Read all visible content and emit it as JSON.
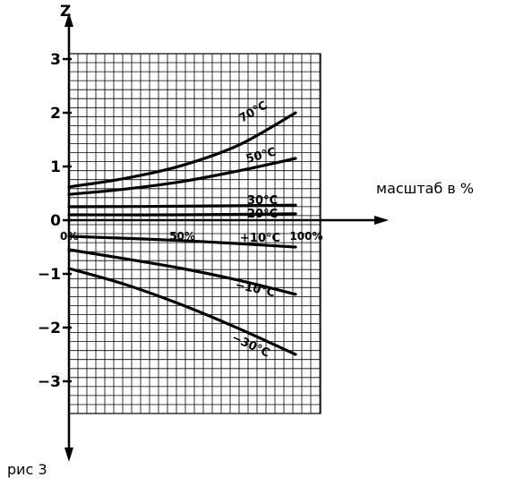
{
  "chart_data": {
    "type": "line",
    "title": "",
    "ylabel": "Z",
    "xlabel": "масштаб в %",
    "caption": "рис 3",
    "xlim": [
      0,
      100
    ],
    "ylim": [
      -3,
      3
    ],
    "y_ticks": [
      {
        "value": 3,
        "label": "3"
      },
      {
        "value": 2,
        "label": "2"
      },
      {
        "value": 1,
        "label": "1"
      },
      {
        "value": 0,
        "label": "0"
      },
      {
        "value": -1,
        "label": "−1"
      },
      {
        "value": -2,
        "label": "−2"
      },
      {
        "value": -3,
        "label": "−3"
      }
    ],
    "x_ticks": [
      {
        "value": 0,
        "label": "0%"
      },
      {
        "value": 50,
        "label": "50%"
      },
      {
        "value": 100,
        "label": "100%"
      }
    ],
    "grid": true,
    "series": [
      {
        "name": "70°C",
        "x": [
          0,
          25,
          50,
          75,
          100
        ],
        "y": [
          0.62,
          0.78,
          1.02,
          1.4,
          2.0
        ]
      },
      {
        "name": "50°C",
        "x": [
          0,
          25,
          50,
          75,
          100
        ],
        "y": [
          0.48,
          0.58,
          0.72,
          0.92,
          1.15
        ]
      },
      {
        "name": "30°C",
        "x": [
          0,
          50,
          100
        ],
        "y": [
          0.25,
          0.26,
          0.28
        ]
      },
      {
        "name": "20°C",
        "x": [
          0,
          50,
          100
        ],
        "y": [
          0.1,
          0.1,
          0.12
        ]
      },
      {
        "name": "+10°C",
        "x": [
          0,
          50,
          100
        ],
        "y": [
          -0.3,
          -0.38,
          -0.5
        ]
      },
      {
        "name": "−10°C",
        "x": [
          0,
          25,
          50,
          75,
          100
        ],
        "y": [
          -0.55,
          -0.72,
          -0.9,
          -1.12,
          -1.38
        ]
      },
      {
        "name": "−30°C",
        "x": [
          0,
          25,
          50,
          75,
          100
        ],
        "y": [
          -0.9,
          -1.2,
          -1.58,
          -2.02,
          -2.5
        ]
      }
    ]
  }
}
